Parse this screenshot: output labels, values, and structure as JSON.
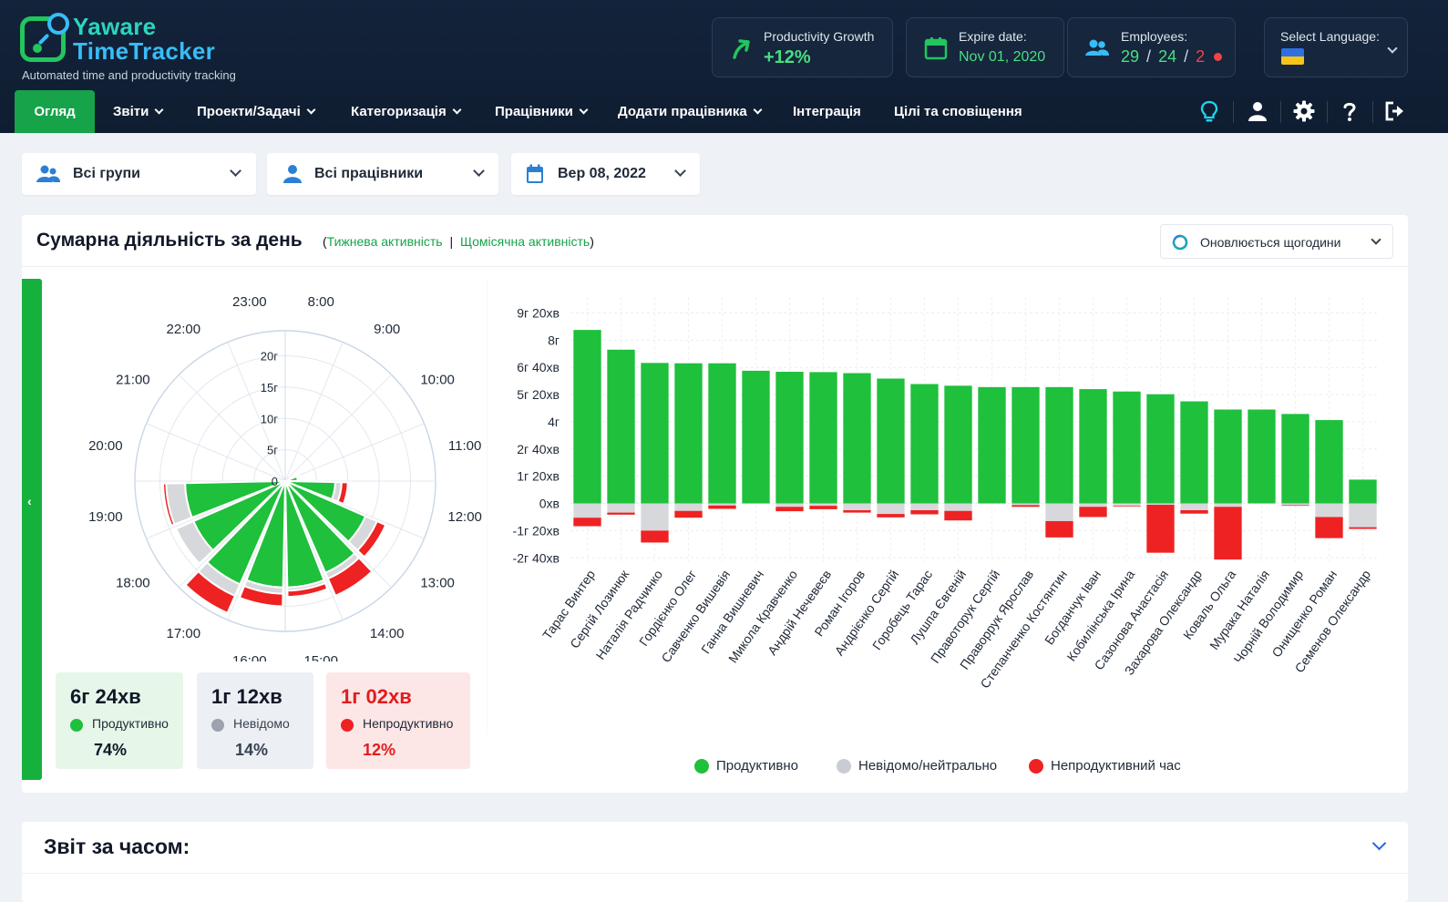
{
  "brand": {
    "name_line1": "Yaware",
    "name_line2": "TimeTracker",
    "tagline": "Automated time and productivity tracking"
  },
  "header_cards": {
    "productivity": {
      "label": "Productivity Growth",
      "value": "+12%"
    },
    "expire": {
      "label": "Expire date:",
      "value": "Nov 01, 2020"
    },
    "employees": {
      "label": "Employees:",
      "total": "29",
      "active": "24",
      "offline": "2",
      "sep": "/"
    },
    "language": {
      "label": "Select Language:",
      "flag": "ukraine-flag"
    }
  },
  "nav": {
    "items": [
      {
        "label": "Огляд",
        "dropdown": false
      },
      {
        "label": "Звіти",
        "dropdown": true
      },
      {
        "label": "Проекти/Задачі",
        "dropdown": true
      },
      {
        "label": "Категоризація",
        "dropdown": true
      },
      {
        "label": "Працівники",
        "dropdown": true
      },
      {
        "label": "Додати працівника",
        "dropdown": true
      },
      {
        "label": "Інтеграція",
        "dropdown": false
      },
      {
        "label": "Цілі та сповіщення",
        "dropdown": false
      }
    ],
    "right_icons": [
      "lightbulb-icon",
      "user-icon",
      "gear-icon",
      "help-icon",
      "logout-icon"
    ]
  },
  "filters": {
    "groups": "Всі групи",
    "employees": "Всі працівники",
    "date": "Вер 08, 2022"
  },
  "panel": {
    "title": "Сумарна діяльність за день",
    "link_open": "(",
    "link_weekly": "Тижнева активність",
    "link_sep": "|",
    "link_monthly": "Щомісячна активність",
    "link_close": ")",
    "update_label": "Оновлюється щогодини"
  },
  "stats": {
    "productive": {
      "time": "6г 24хв",
      "label": "Продуктивно",
      "pct": "74%"
    },
    "unknown": {
      "time": "1г 12хв",
      "label": "Невідомо",
      "pct": "14%"
    },
    "unproductive": {
      "time": "1г 02хв",
      "label": "Непродуктивно",
      "pct": "12%"
    }
  },
  "legend": {
    "productive": "Продуктивно",
    "neutral": "Невідомо/нейтрально",
    "unproductive": "Непродуктивний час"
  },
  "colors": {
    "productive": "#1ec03c",
    "neutral": "#d6d8dc",
    "unproductive": "#ee2222",
    "accent": "#16a34a"
  },
  "chart_data": [
    {
      "type": "bar",
      "subtype": "polar",
      "hour_labels": [
        "8:00",
        "9:00",
        "10:00",
        "11:00",
        "12:00",
        "13:00",
        "14:00",
        "15:00",
        "16:00",
        "17:00",
        "18:00",
        "19:00",
        "20:00",
        "21:00",
        "22:00",
        "23:00"
      ],
      "radial_ticks": [
        "0",
        "5г",
        "10г",
        "15г",
        "20г"
      ],
      "series": [
        {
          "name": "Продуктивно",
          "values": [
            0,
            0,
            0,
            2,
            8,
            14,
            16,
            17,
            17,
            18,
            16,
            16,
            0,
            0,
            0,
            0
          ]
        },
        {
          "name": "Невідомо",
          "values": [
            0,
            0,
            0,
            0,
            1,
            2,
            1,
            0.5,
            1,
            2,
            3,
            3,
            0,
            0,
            0,
            0
          ]
        },
        {
          "name": "Непродуктивно",
          "values": [
            0,
            0,
            0,
            0.3,
            1,
            1.5,
            3,
            1,
            2,
            3,
            0,
            0.5,
            0,
            0,
            0,
            0
          ]
        }
      ]
    },
    {
      "type": "bar",
      "stacked": true,
      "y_ticks": [
        "9г 20хв",
        "8г",
        "6г 40хв",
        "5г 20хв",
        "4г",
        "2г 40хв",
        "1г 20хв",
        "0хв",
        "-1г 20хв",
        "-2г 40хв"
      ],
      "ylim": [
        -170,
        580
      ],
      "categories": [
        "Тарас Винтер",
        "Сергій Лозинюк",
        "Наталія Радчинко",
        "Гордієнко Олег",
        "Савченко Вишевія",
        "Ганна Вишневич",
        "Микола Кравченко",
        "Андрій Нечевеєв",
        "Роман Ігоров",
        "Андрієнко Сергій",
        "Горобець Тарас",
        "Лушпа Євгеній",
        "Правоторук Сергій",
        "Праворрук Ярослав",
        "Степанченко Костянтин",
        "Богданчук Іван",
        "Кобилінська Ірина",
        "Сазонова Анастасія",
        "Захарова Олександр",
        "Коваль Ольга",
        "Мурака Наталія",
        "Чорній Володимир",
        "Онищенко Роман",
        "Семенов Олександр"
      ],
      "series": [
        {
          "name": "Продуктивно",
          "values": [
            510,
            452,
            413,
            412,
            412,
            390,
            387,
            386,
            383,
            367,
            351,
            346,
            342,
            342,
            342,
            336,
            329,
            321,
            300,
            276,
            276,
            263,
            245,
            70
          ]
        },
        {
          "name": "Невідомо/нейтрально",
          "values": [
            -42,
            -27,
            -80,
            -22,
            -6,
            0,
            -10,
            -7,
            -20,
            -31,
            -20,
            -22,
            0,
            -5,
            -52,
            -10,
            -7,
            -4,
            -20,
            -10,
            0,
            -5,
            -40,
            -70
          ]
        },
        {
          "name": "Непродуктивний час",
          "values": [
            -25,
            -6,
            -35,
            -20,
            -10,
            0,
            -13,
            -10,
            -7,
            -10,
            -12,
            -28,
            0,
            -5,
            -48,
            -30,
            -2,
            -141,
            -10,
            -155,
            0,
            -2,
            -62,
            -5
          ]
        }
      ]
    }
  ],
  "bottom_panel": {
    "title": "Звіт за часом:"
  }
}
